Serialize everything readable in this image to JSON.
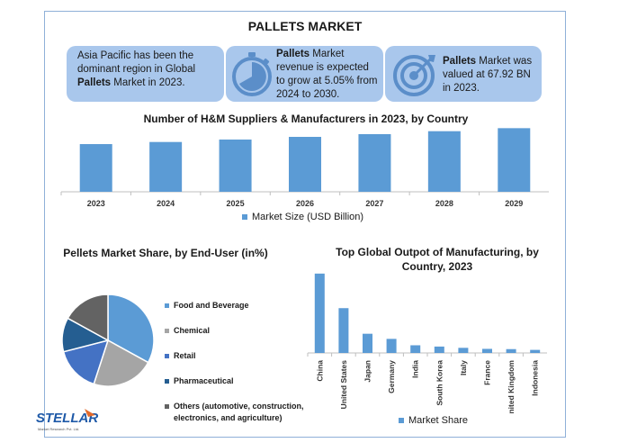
{
  "header": {
    "title": "PALLETS MARKET"
  },
  "cards": [
    {
      "parts": [
        {
          "t": "Asia Pacific has been the dominant region in Global ",
          "b": false
        },
        {
          "t": "Pallets",
          "b": true
        },
        {
          "t": " Market in 2023.",
          "b": false
        }
      ]
    },
    {
      "parts": [
        {
          "t": "Pallets",
          "b": true
        },
        {
          "t": " Market revenue is expected to grow at 5.05% from 2024 to 2030.",
          "b": false
        }
      ],
      "icon": "stopwatch-icon"
    },
    {
      "parts": [
        {
          "t": "Pallets",
          "b": true
        },
        {
          "t": " Market was valued at 67.92 BN in 2023.",
          "b": false
        }
      ],
      "icon": "target-icon"
    }
  ],
  "colors": {
    "bar": "#5b9bd5",
    "card": "#a9c7ec",
    "border": "#8fb0d8"
  },
  "chart_data": [
    {
      "type": "bar",
      "title": "Number of H&M Suppliers & Manufacturers in 2023, by Country",
      "categories": [
        "2023",
        "2024",
        "2025",
        "2026",
        "2027",
        "2028",
        "2029"
      ],
      "series": [
        {
          "name": "Market Size (USD Billion)",
          "values": [
            68,
            71,
            74.5,
            78.3,
            82.2,
            86.4,
            90.7
          ]
        }
      ],
      "ylim": [
        0,
        95
      ],
      "legend": "bottom",
      "grid": false
    },
    {
      "type": "pie",
      "title": "Pellets Market Share, by End-User (in%)",
      "labels": [
        "Food and Beverage",
        "Chemical",
        "Retail",
        "Pharmaceutical",
        "Others (automotive, construction, electronics, and agriculture)"
      ],
      "values": [
        33,
        22,
        16,
        12,
        17
      ],
      "colors": [
        "#5b9bd5",
        "#a5a5a5",
        "#4472c4",
        "#255e91",
        "#636363"
      ],
      "legend": "right"
    },
    {
      "type": "bar",
      "title": "Top Global Outpot of Manufacturing, by Country, 2023",
      "categories": [
        "China",
        "United States",
        "Japan",
        "Germany",
        "India",
        "South Korea",
        "Italy",
        "France",
        "United Kingdom",
        "Indonesia"
      ],
      "series": [
        {
          "name": "Market Share",
          "values": [
            31,
            17.5,
            7.5,
            5.5,
            3,
            2.5,
            2,
            1.6,
            1.5,
            1.2
          ]
        }
      ],
      "ylim": [
        0,
        32
      ],
      "legend": "bottom",
      "grid": false
    }
  ],
  "logo": {
    "name": "STELLAR",
    "tagline": "Market Research Pvt. Ltd."
  }
}
